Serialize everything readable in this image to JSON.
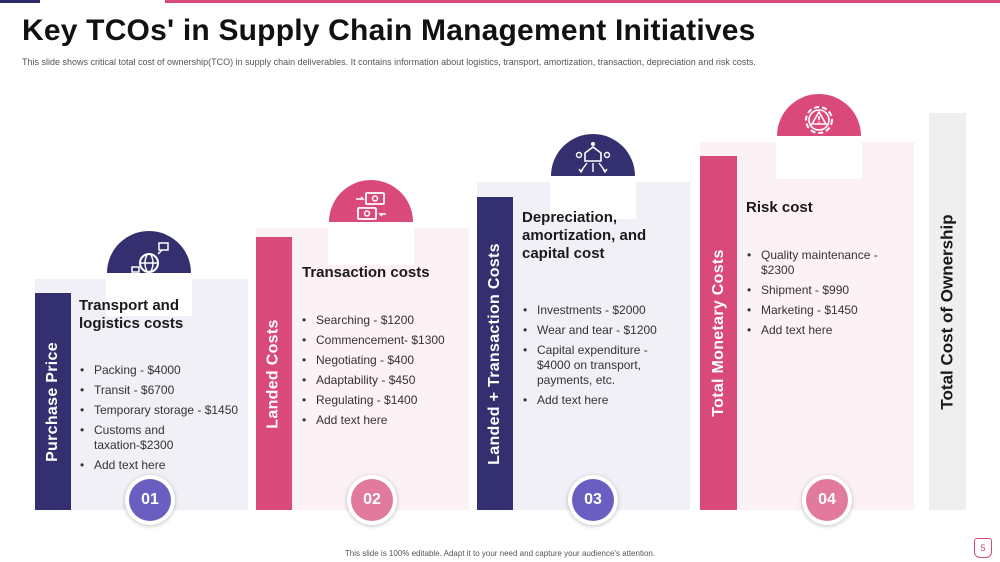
{
  "slide": {
    "title": "Key TCOs' in Supply Chain Management Initiatives",
    "subtitle": "This slide shows critical total cost of ownership(TCO) in supply chain deliverables. It contains information about logistics, transport, amortization, transaction, depreciation and risk costs.",
    "footer": "This slide is 100% editable. Adapt it to your need and capture your audience's attention.",
    "page_number": "5"
  },
  "colors": {
    "navy": "#34306f",
    "pink": "#d94a7a",
    "card_light_navy": "#f1f0f6",
    "card_light_pink": "#fcf1f5",
    "badge_navy": "#6a5fc1",
    "badge_pink": "#e27a9d"
  },
  "cards": [
    {
      "bar_label": "Purchase Price",
      "heading": "Transport and logistics costs",
      "items": [
        "Packing - $4000",
        "Transit - $6700",
        "Temporary storage - $1450",
        "Customs and taxation-$2300",
        "Add text here"
      ],
      "number": "01",
      "icon": "globe-network-icon"
    },
    {
      "bar_label": "Landed Costs",
      "heading": "Transaction costs",
      "items": [
        "Searching - $1200",
        "Commencement- $1300",
        "Negotiating - $400",
        "Adaptability  - $450",
        "Regulating  - $1400",
        "Add text here"
      ],
      "number": "02",
      "icon": "money-transfer-icon"
    },
    {
      "bar_label": "Landed + Transaction Costs",
      "heading": "Depreciation, amortization, and capital cost",
      "items": [
        "Investments - $2000",
        "Wear and tear - $1200",
        "Capital expenditure - $4000 on transport, payments, etc.",
        "Add text here"
      ],
      "number": "03",
      "icon": "decentralized-network-icon"
    },
    {
      "bar_label": "Total Monetary Costs",
      "heading": "Risk cost",
      "items": [
        "Quality maintenance - $2300",
        "Shipment - $990",
        "Marketing - $1450",
        "Add text here"
      ],
      "number": "04",
      "icon": "risk-warning-gear-icon"
    }
  ],
  "tco_label": "Total Cost of Ownership"
}
